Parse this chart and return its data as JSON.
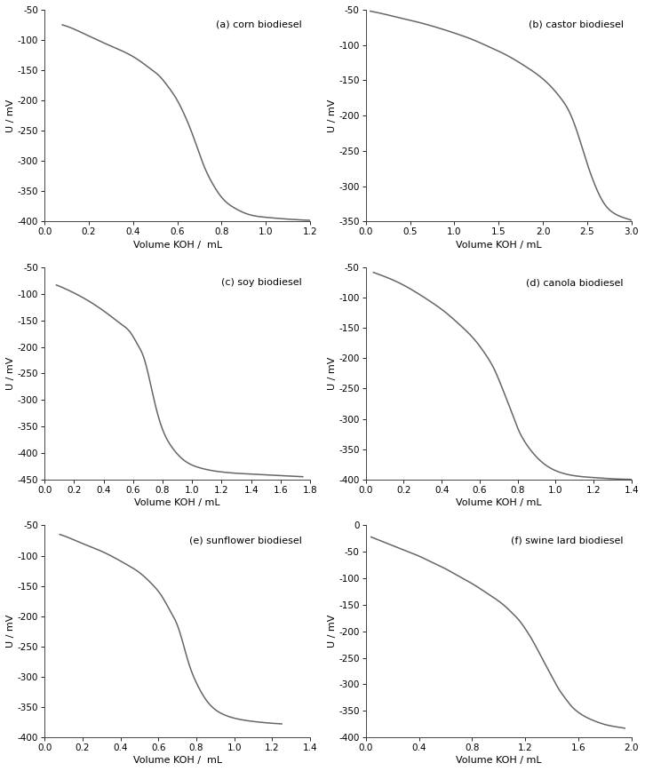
{
  "subplots": [
    {
      "label": "(a) corn biodiesel",
      "xlabel": "Volume KOH /  mL",
      "ylabel": "U / mV",
      "xlim": [
        0.0,
        1.2
      ],
      "ylim": [
        -400,
        -50
      ],
      "xticks": [
        0.0,
        0.2,
        0.4,
        0.6,
        0.8,
        1.0,
        1.2
      ],
      "yticks": [
        -400,
        -350,
        -300,
        -250,
        -200,
        -150,
        -100,
        -50
      ],
      "curve_x": [
        0.08,
        0.12,
        0.18,
        0.25,
        0.35,
        0.42,
        0.48,
        0.52,
        0.56,
        0.6,
        0.63,
        0.66,
        0.69,
        0.72,
        0.76,
        0.8,
        0.86,
        0.92,
        1.0,
        1.1,
        1.2
      ],
      "curve_y": [
        -75,
        -80,
        -90,
        -102,
        -118,
        -132,
        -148,
        -160,
        -178,
        -200,
        -222,
        -248,
        -278,
        -308,
        -338,
        -360,
        -378,
        -388,
        -393,
        -396,
        -398
      ]
    },
    {
      "label": "(b) castor biodiesel",
      "xlabel": "Volume KOH / mL",
      "ylabel": "U / mV",
      "xlim": [
        0.0,
        3.0
      ],
      "ylim": [
        -350,
        -50
      ],
      "xticks": [
        0.0,
        0.5,
        1.0,
        1.5,
        2.0,
        2.5,
        3.0
      ],
      "yticks": [
        -350,
        -300,
        -250,
        -200,
        -150,
        -100,
        -50
      ],
      "curve_x": [
        0.05,
        0.2,
        0.4,
        0.6,
        0.8,
        1.0,
        1.2,
        1.4,
        1.6,
        1.8,
        2.0,
        2.1,
        2.2,
        2.3,
        2.35,
        2.4,
        2.45,
        2.5,
        2.55,
        2.6,
        2.7,
        2.8,
        2.9,
        3.0
      ],
      "curve_y": [
        -52,
        -56,
        -62,
        -68,
        -75,
        -83,
        -92,
        -103,
        -115,
        -130,
        -148,
        -160,
        -175,
        -195,
        -210,
        -228,
        -248,
        -268,
        -286,
        -302,
        -326,
        -338,
        -344,
        -348
      ]
    },
    {
      "label": "(c) soy biodiesel",
      "xlabel": "Volume KOH / mL",
      "ylabel": "U / mV",
      "xlim": [
        0.0,
        1.8
      ],
      "ylim": [
        -450,
        -50
      ],
      "xticks": [
        0.0,
        0.2,
        0.4,
        0.6,
        0.8,
        1.0,
        1.2,
        1.4,
        1.6,
        1.8
      ],
      "yticks": [
        -450,
        -400,
        -350,
        -300,
        -250,
        -200,
        -150,
        -100,
        -50
      ],
      "curve_x": [
        0.08,
        0.14,
        0.2,
        0.28,
        0.36,
        0.44,
        0.52,
        0.58,
        0.63,
        0.67,
        0.7,
        0.73,
        0.76,
        0.8,
        0.86,
        0.95,
        1.05,
        1.2,
        1.4,
        1.6,
        1.75
      ],
      "curve_y": [
        -83,
        -90,
        -98,
        -110,
        -124,
        -140,
        -157,
        -172,
        -195,
        -218,
        -248,
        -285,
        -320,
        -356,
        -388,
        -415,
        -428,
        -436,
        -440,
        -443,
        -445
      ]
    },
    {
      "label": "(d) canola biodiesel",
      "xlabel": "Volume KOH / mL",
      "ylabel": "U / mV",
      "xlim": [
        0.0,
        1.4
      ],
      "ylim": [
        -400,
        -50
      ],
      "xticks": [
        0.0,
        0.2,
        0.4,
        0.6,
        0.8,
        1.0,
        1.2,
        1.4
      ],
      "yticks": [
        -400,
        -350,
        -300,
        -250,
        -200,
        -150,
        -100,
        -50
      ],
      "curve_x": [
        0.04,
        0.1,
        0.18,
        0.26,
        0.34,
        0.42,
        0.5,
        0.57,
        0.63,
        0.68,
        0.72,
        0.76,
        0.8,
        0.86,
        0.93,
        1.02,
        1.1,
        1.2,
        1.3,
        1.4
      ],
      "curve_y": [
        -58,
        -65,
        -76,
        -90,
        -106,
        -124,
        -146,
        -168,
        -193,
        -220,
        -250,
        -282,
        -315,
        -348,
        -372,
        -388,
        -394,
        -397,
        -399,
        -400
      ]
    },
    {
      "label": "(e) sunflower biodiesel",
      "xlabel": "Volume KOH /  mL",
      "ylabel": "U / mV",
      "xlim": [
        0.0,
        1.4
      ],
      "ylim": [
        -400,
        -50
      ],
      "xticks": [
        0.0,
        0.2,
        0.4,
        0.6,
        0.8,
        1.0,
        1.2,
        1.4
      ],
      "yticks": [
        -400,
        -350,
        -300,
        -250,
        -200,
        -150,
        -100,
        -50
      ],
      "curve_x": [
        0.08,
        0.14,
        0.2,
        0.28,
        0.36,
        0.44,
        0.5,
        0.56,
        0.62,
        0.66,
        0.7,
        0.73,
        0.76,
        0.8,
        0.86,
        0.94,
        1.02,
        1.1,
        1.2,
        1.25
      ],
      "curve_y": [
        -65,
        -72,
        -80,
        -90,
        -102,
        -116,
        -128,
        -145,
        -168,
        -190,
        -215,
        -245,
        -278,
        -310,
        -342,
        -362,
        -370,
        -374,
        -377,
        -378
      ]
    },
    {
      "label": "(f) swine lard biodiesel",
      "xlabel": "Volume KOH / mL",
      "ylabel": "U / mV",
      "xlim": [
        0.0,
        2.0
      ],
      "ylim": [
        -400,
        0
      ],
      "xticks": [
        0.0,
        0.4,
        0.8,
        1.2,
        1.6,
        2.0
      ],
      "yticks": [
        -400,
        -350,
        -300,
        -250,
        -200,
        -150,
        -100,
        -50,
        0
      ],
      "curve_x": [
        0.04,
        0.1,
        0.2,
        0.3,
        0.4,
        0.5,
        0.6,
        0.7,
        0.8,
        0.9,
        1.0,
        1.05,
        1.1,
        1.15,
        1.2,
        1.25,
        1.3,
        1.35,
        1.4,
        1.45,
        1.5,
        1.55,
        1.6,
        1.65,
        1.7,
        1.8,
        1.9,
        1.95
      ],
      "curve_y": [
        -22,
        -28,
        -38,
        -48,
        -58,
        -70,
        -82,
        -96,
        -110,
        -126,
        -143,
        -153,
        -165,
        -178,
        -195,
        -215,
        -238,
        -262,
        -285,
        -308,
        -326,
        -342,
        -353,
        -361,
        -367,
        -376,
        -381,
        -383
      ]
    }
  ],
  "line_color": "#666666",
  "line_width": 1.1,
  "background_color": "#ffffff",
  "tick_fontsize": 7.5,
  "label_fontsize": 8,
  "annotation_fontsize": 8
}
